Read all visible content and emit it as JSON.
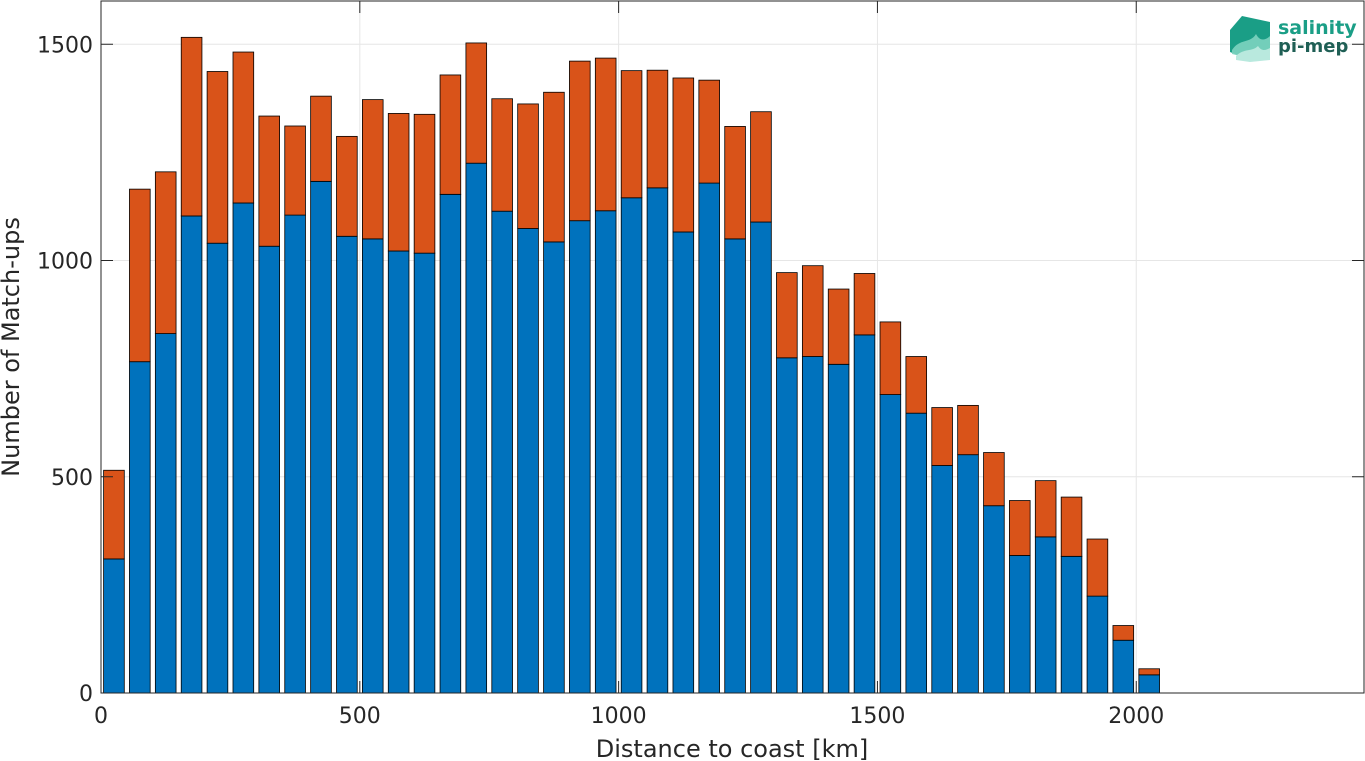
{
  "chart_data": {
    "type": "bar",
    "stacked": true,
    "xlabel": "Distance to coast [km]",
    "ylabel": "Number of Match-ups",
    "xlim": [
      0,
      2440
    ],
    "ylim": [
      0,
      1600
    ],
    "xticks": [
      0,
      500,
      1000,
      1500,
      2000
    ],
    "yticks": [
      0,
      500,
      1000,
      1500
    ],
    "grid": true,
    "bin_width": 50,
    "x": [
      25,
      75,
      125,
      175,
      225,
      275,
      325,
      375,
      425,
      475,
      525,
      575,
      625,
      675,
      725,
      775,
      825,
      875,
      925,
      975,
      1025,
      1075,
      1125,
      1175,
      1225,
      1275,
      1325,
      1375,
      1425,
      1475,
      1525,
      1575,
      1625,
      1675,
      1725,
      1775,
      1825,
      1875,
      1925,
      1975,
      2025
    ],
    "series": [
      {
        "color": "#0072BD",
        "values": [
          310,
          766,
          831,
          1103,
          1040,
          1133,
          1033,
          1105,
          1183,
          1056,
          1050,
          1022,
          1017,
          1153,
          1225,
          1114,
          1074,
          1043,
          1092,
          1115,
          1145,
          1168,
          1066,
          1179,
          1050,
          1089,
          775,
          778,
          760,
          828,
          690,
          647,
          526,
          551,
          433,
          318,
          361,
          316,
          224,
          122,
          42
        ]
      },
      {
        "color": "#D95319",
        "values": [
          205,
          399,
          374,
          413,
          397,
          349,
          301,
          206,
          197,
          231,
          322,
          318,
          321,
          276,
          278,
          260,
          288,
          346,
          369,
          353,
          294,
          272,
          356,
          238,
          260,
          255,
          197,
          210,
          174,
          142,
          168,
          131,
          134,
          114,
          123,
          127,
          130,
          137,
          132,
          34,
          14
        ]
      }
    ]
  },
  "logo": {
    "line1": "salinity",
    "line2": "pi-mep",
    "color": "#1a9e86"
  }
}
